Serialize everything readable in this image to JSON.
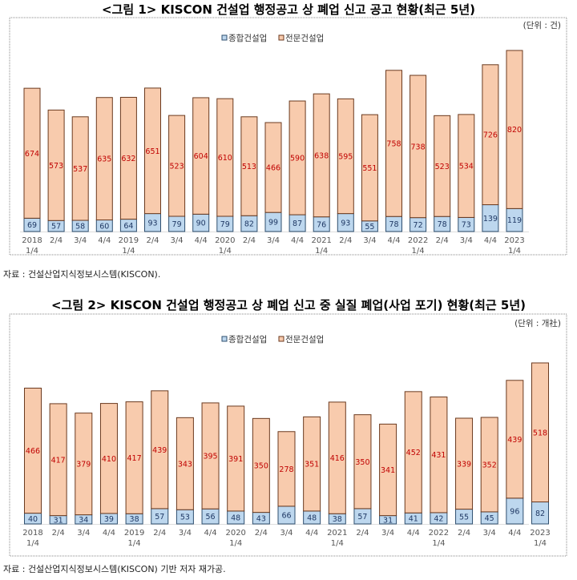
{
  "colors": {
    "general": "#bdd7ee",
    "specialty": "#f8cbad",
    "border": "#6b3a1f",
    "general_border": "#2f4f6f",
    "specialty_label": "#c00000"
  },
  "chart_data": [
    {
      "type": "bar",
      "stacked": true,
      "title": "<그림 1> KISCON 건설업 행정공고 상 폐업 신고 공고 현황(최근 5년)",
      "unit": "(단위 : 건)",
      "source": "자료 : 건설산업지식정보시스템(KISCON).",
      "legend_position": "top",
      "grid": false,
      "categories": [
        [
          "2018",
          "1/4"
        ],
        [
          "2/4",
          ""
        ],
        [
          "3/4",
          ""
        ],
        [
          "4/4",
          ""
        ],
        [
          "2019",
          "1/4"
        ],
        [
          "2/4",
          ""
        ],
        [
          "3/4",
          ""
        ],
        [
          "4/4",
          ""
        ],
        [
          "2020",
          "1/4"
        ],
        [
          "2/4",
          ""
        ],
        [
          "3/4",
          ""
        ],
        [
          "4/4",
          ""
        ],
        [
          "2021",
          "1/4"
        ],
        [
          "2/4",
          ""
        ],
        [
          "3/4",
          ""
        ],
        [
          "4/4",
          ""
        ],
        [
          "2022",
          "1/4"
        ],
        [
          "2/4",
          ""
        ],
        [
          "3/4",
          ""
        ],
        [
          "4/4",
          ""
        ],
        [
          "2023",
          "1/4"
        ]
      ],
      "series": [
        {
          "name": "종합건설업",
          "values": [
            69,
            57,
            58,
            60,
            64,
            93,
            79,
            90,
            79,
            82,
            99,
            87,
            76,
            93,
            55,
            78,
            72,
            78,
            73,
            139,
            119
          ]
        },
        {
          "name": "전문건설업",
          "values": [
            674,
            573,
            537,
            635,
            632,
            651,
            523,
            604,
            610,
            513,
            466,
            590,
            638,
            595,
            551,
            758,
            738,
            523,
            534,
            726,
            820
          ]
        }
      ]
    },
    {
      "type": "bar",
      "stacked": true,
      "title": "<그림 2> KISCON 건설업 행정공고 상 폐업 신고 중 실질 폐업(사업 포기) 현황(최근 5년)",
      "unit": "(단위 : 개社)",
      "source": "자료 : 건설산업지식정보시스템(KISCON) 기반 저자 재가공.",
      "legend_position": "top",
      "grid": false,
      "categories": [
        [
          "2018",
          "1/4"
        ],
        [
          "2/4",
          ""
        ],
        [
          "3/4",
          ""
        ],
        [
          "4/4",
          ""
        ],
        [
          "2019",
          "1/4"
        ],
        [
          "2/4",
          ""
        ],
        [
          "3/4",
          ""
        ],
        [
          "4/4",
          ""
        ],
        [
          "2020",
          "1/4"
        ],
        [
          "2/4",
          ""
        ],
        [
          "3/4",
          ""
        ],
        [
          "4/4",
          ""
        ],
        [
          "2021",
          "1/4"
        ],
        [
          "2/4",
          ""
        ],
        [
          "3/4",
          ""
        ],
        [
          "4/4",
          ""
        ],
        [
          "2022",
          "1/4"
        ],
        [
          "2/4",
          ""
        ],
        [
          "3/4",
          ""
        ],
        [
          "4/4",
          ""
        ],
        [
          "2023",
          "1/4"
        ]
      ],
      "series": [
        {
          "name": "종합건설업",
          "values": [
            40,
            31,
            34,
            39,
            38,
            57,
            53,
            56,
            48,
            43,
            66,
            48,
            38,
            57,
            31,
            41,
            42,
            55,
            45,
            96,
            82
          ]
        },
        {
          "name": "전문건설업",
          "values": [
            466,
            417,
            379,
            410,
            417,
            439,
            343,
            395,
            391,
            350,
            278,
            351,
            416,
            350,
            341,
            452,
            431,
            339,
            352,
            439,
            518
          ]
        }
      ]
    }
  ]
}
